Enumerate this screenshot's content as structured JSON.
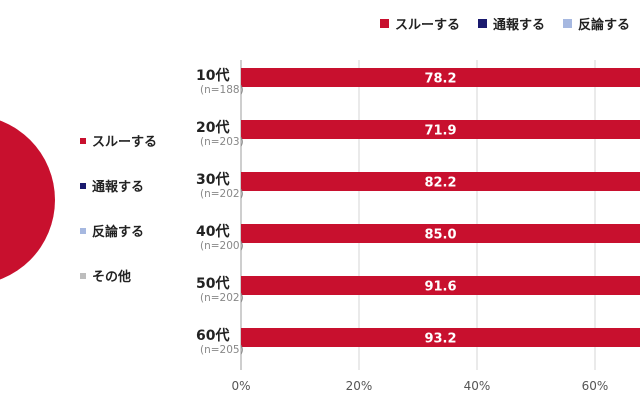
{
  "legend_left": [
    {
      "label": "スルーする",
      "color": "#c8102e"
    },
    {
      "label": "通報する",
      "color": "#1a1a6e"
    },
    {
      "label": "反論する",
      "color": "#a6b8e0"
    },
    {
      "label": "その他",
      "color": "#bdbdbd"
    }
  ],
  "legend_top": [
    {
      "label": "スルーする",
      "color": "#c8102e"
    },
    {
      "label": "通報する",
      "color": "#1a1a6e"
    },
    {
      "label": "反論する",
      "color": "#a6b8e0"
    }
  ],
  "ages": [
    {
      "label": "10代",
      "n": "(n=188)"
    },
    {
      "label": "20代",
      "n": "(n=203)"
    },
    {
      "label": "30代",
      "n": "(n=202)"
    },
    {
      "label": "40代",
      "n": "(n=200)"
    },
    {
      "label": "50代",
      "n": "(n=202)"
    },
    {
      "label": "60代",
      "n": "(n=205)"
    }
  ],
  "chart_data": {
    "type": "bar",
    "orientation": "horizontal",
    "stacked": true,
    "categories": [
      "10代",
      "20代",
      "30代",
      "40代",
      "50代",
      "60代"
    ],
    "series": [
      {
        "name": "スルーする",
        "color": "#c8102e",
        "values": [
          78.2,
          71.9,
          82.2,
          85.0,
          91.6,
          93.2
        ],
        "labels": [
          "78.2",
          "71.9",
          "82.2",
          "85.0",
          "91.6",
          "93.2"
        ]
      }
    ],
    "xlim": [
      0,
      100
    ],
    "xticks": [
      0,
      20,
      40,
      60
    ],
    "xtick_labels": [
      "0%",
      "20%",
      "40%",
      "60%"
    ],
    "grid": true
  },
  "pie_chart": {
    "type": "pie",
    "slices": [
      {
        "label": "スルーする",
        "color": "#c8102e"
      }
    ]
  }
}
